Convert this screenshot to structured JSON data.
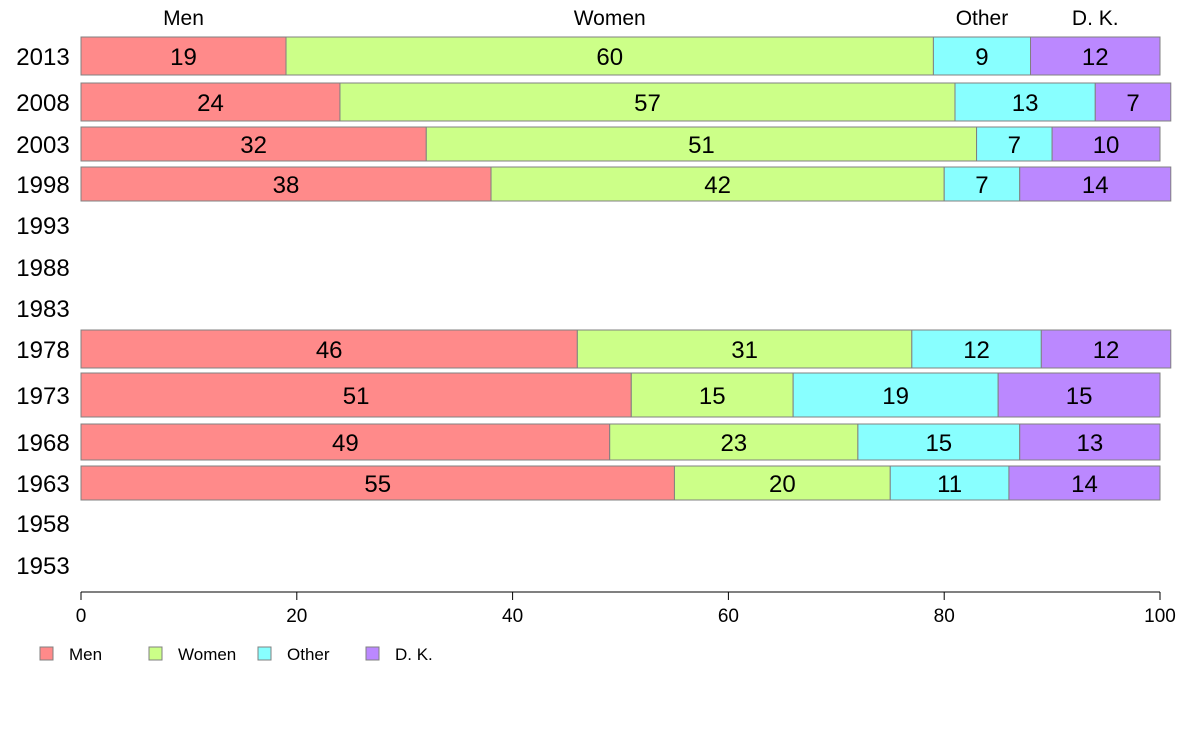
{
  "chart_data": {
    "type": "bar",
    "orientation": "horizontal",
    "stacked": true,
    "categories": [
      "2013",
      "2008",
      "2003",
      "1998",
      "1993",
      "1988",
      "1983",
      "1978",
      "1973",
      "1968",
      "1963",
      "1958",
      "1953"
    ],
    "series": [
      {
        "name": "Men",
        "color": "#FF8A8A",
        "values": [
          19,
          24,
          32,
          38,
          null,
          null,
          null,
          46,
          51,
          49,
          55,
          null,
          null
        ]
      },
      {
        "name": "Women",
        "color": "#CCFF88",
        "values": [
          60,
          57,
          51,
          42,
          null,
          null,
          null,
          31,
          15,
          23,
          20,
          null,
          null
        ]
      },
      {
        "name": "Other",
        "color": "#88FFFF",
        "values": [
          9,
          13,
          7,
          7,
          null,
          null,
          null,
          12,
          19,
          15,
          11,
          null,
          null
        ]
      },
      {
        "name": "D. K.",
        "color": "#BB88FF",
        "values": [
          12,
          7,
          10,
          14,
          null,
          null,
          null,
          12,
          15,
          13,
          14,
          null,
          null
        ]
      }
    ],
    "column_headers": [
      "Men",
      "Women",
      "Other",
      "D. K."
    ],
    "xlim": [
      0,
      100
    ],
    "xticks": [
      0,
      20,
      40,
      60,
      80,
      100
    ],
    "title": "",
    "xlabel": "",
    "ylabel": "",
    "grid": false,
    "legend_position": "bottom-left"
  }
}
